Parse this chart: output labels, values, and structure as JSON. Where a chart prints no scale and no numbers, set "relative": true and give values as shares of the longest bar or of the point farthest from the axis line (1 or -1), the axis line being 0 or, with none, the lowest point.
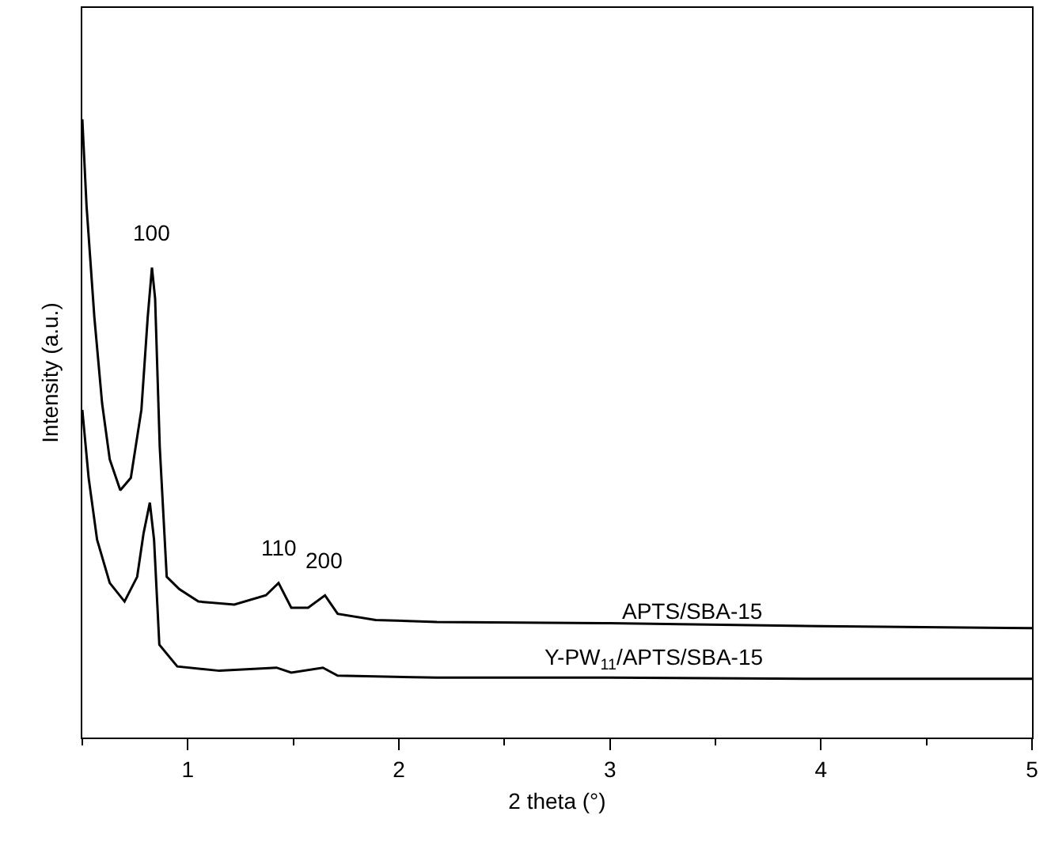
{
  "chart_data": {
    "type": "line",
    "relative": true,
    "xlabel": "2 theta (°)",
    "ylabel": "Intensity (a.u.)",
    "xlim": [
      0.5,
      5
    ],
    "xticks": [
      1,
      2,
      3,
      4,
      5
    ],
    "tick_labels": "x",
    "grid": false,
    "legend": false,
    "marker": "none",
    "line_style": "solid",
    "series": [
      {
        "name": "APTS/SBA-15",
        "color": "#000000",
        "x": [
          0.5,
          0.52,
          0.557,
          0.594,
          0.63,
          0.68,
          0.73,
          0.78,
          0.81,
          0.83,
          0.845,
          0.867,
          0.9,
          0.96,
          1.05,
          1.22,
          1.37,
          1.43,
          1.49,
          1.57,
          1.65,
          1.71,
          1.89,
          2.18,
          3,
          4,
          5
        ],
        "values": [
          1.0,
          0.86,
          0.68,
          0.54,
          0.45,
          0.4,
          0.42,
          0.53,
          0.68,
          0.76,
          0.71,
          0.47,
          0.26,
          0.24,
          0.22,
          0.215,
          0.23,
          0.25,
          0.21,
          0.21,
          0.23,
          0.2,
          0.19,
          0.187,
          0.185,
          0.18,
          0.177
        ]
      },
      {
        "name": "Y-PW$_{11}$/APTS/SBA-15",
        "color": "#000000",
        "x": [
          0.5,
          0.53,
          0.57,
          0.63,
          0.7,
          0.76,
          0.79,
          0.82,
          0.84,
          0.865,
          0.95,
          1.15,
          1.42,
          1.49,
          1.64,
          1.71,
          2.18,
          3,
          4,
          5
        ],
        "values": [
          0.53,
          0.42,
          0.32,
          0.25,
          0.22,
          0.26,
          0.33,
          0.38,
          0.32,
          0.15,
          0.115,
          0.108,
          0.113,
          0.105,
          0.113,
          0.1,
          0.097,
          0.097,
          0.095,
          0.095
        ]
      }
    ],
    "annotations": [
      {
        "text": "100",
        "x": 0.83,
        "y": 0.76
      },
      {
        "text": "110",
        "x": 1.43,
        "y": 0.25
      },
      {
        "text": "200",
        "x": 1.65,
        "y": 0.23
      }
    ]
  }
}
